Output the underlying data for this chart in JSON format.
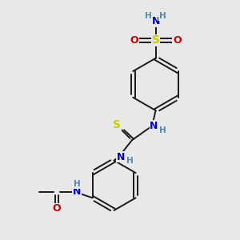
{
  "bg_color": "#e8e8e8",
  "bond_color": "#1a1a1a",
  "bond_width": 1.4,
  "atom_colors": {
    "N": "#0000cc",
    "O": "#cc0000",
    "S_thio": "#cccc00",
    "S_sulfo": "#cccc00",
    "H": "#5588aa",
    "C": "#1a1a1a"
  },
  "font_size": 9,
  "font_size_H": 7.5
}
